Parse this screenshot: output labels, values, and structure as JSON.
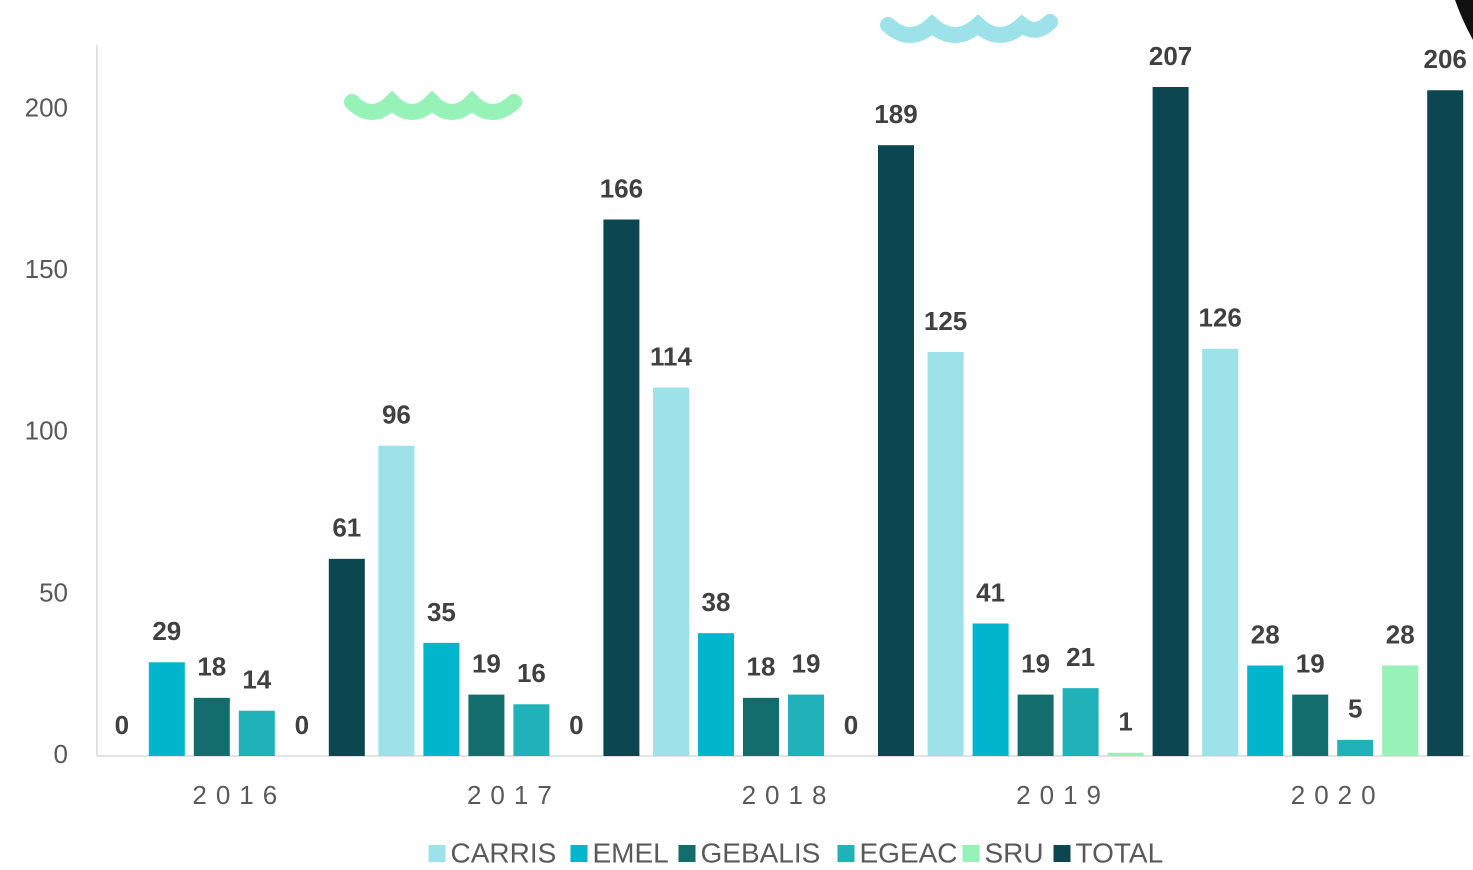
{
  "chart_data": {
    "type": "bar",
    "categories": [
      "2016",
      "2017",
      "2018",
      "2019",
      "2020"
    ],
    "series": [
      {
        "name": "CARRIS",
        "color": "#9de2e8",
        "values": [
          0,
          96,
          114,
          125,
          126
        ]
      },
      {
        "name": "EMEL",
        "color": "#00b5cc",
        "values": [
          29,
          35,
          38,
          41,
          28
        ]
      },
      {
        "name": "GEBALIS",
        "color": "#136d6d",
        "values": [
          18,
          19,
          18,
          19,
          19
        ]
      },
      {
        "name": "EGEAC",
        "color": "#20b2b8",
        "values": [
          14,
          16,
          19,
          21,
          5
        ]
      },
      {
        "name": "SRU",
        "color": "#96f2b6",
        "values": [
          0,
          0,
          0,
          1,
          28
        ]
      },
      {
        "name": "TOTAL",
        "color": "#0c4650",
        "values": [
          61,
          166,
          189,
          207,
          206
        ]
      }
    ],
    "ylim": [
      0,
      220
    ],
    "yticks": [
      0,
      50,
      100,
      150,
      200
    ],
    "grid": false
  }
}
